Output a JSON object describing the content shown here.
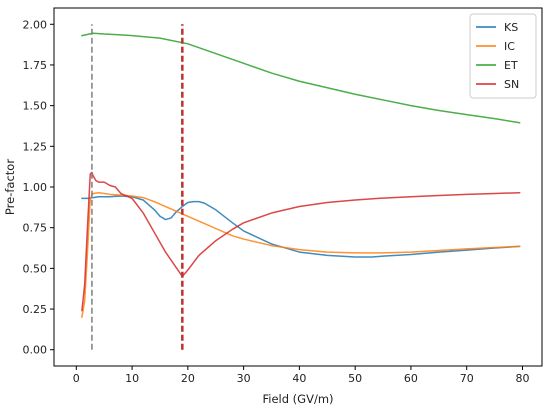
{
  "chart_data": {
    "type": "line",
    "xlabel": "Field (GV/m)",
    "ylabel": "Pre-factor",
    "xlim": [
      -4,
      83.5
    ],
    "ylim": [
      -0.1,
      2.1
    ],
    "xticks": [
      0,
      10,
      20,
      30,
      40,
      50,
      60,
      70,
      80
    ],
    "yticks": [
      0.0,
      0.25,
      0.5,
      0.75,
      1.0,
      1.25,
      1.5,
      1.75,
      2.0
    ],
    "ytick_labels": [
      "0.00",
      "0.25",
      "0.50",
      "0.75",
      "1.00",
      "1.25",
      "1.50",
      "1.75",
      "2.00"
    ],
    "grid": false,
    "legend_position": "top-right",
    "series": [
      {
        "name": "KS",
        "color": "#1f77b4",
        "x": [
          1,
          2,
          3,
          4,
          5,
          6,
          8,
          10,
          12,
          14,
          15,
          16,
          17,
          18,
          19,
          20,
          21,
          22,
          23,
          25,
          28,
          30,
          35,
          40,
          45,
          50,
          53,
          55,
          60,
          65,
          70,
          75,
          79.5
        ],
        "y": [
          0.93,
          0.93,
          0.935,
          0.94,
          0.94,
          0.94,
          0.945,
          0.94,
          0.92,
          0.86,
          0.82,
          0.8,
          0.81,
          0.85,
          0.88,
          0.905,
          0.91,
          0.91,
          0.9,
          0.86,
          0.78,
          0.73,
          0.65,
          0.6,
          0.58,
          0.57,
          0.57,
          0.575,
          0.585,
          0.6,
          0.612,
          0.625,
          0.635
        ]
      },
      {
        "name": "IC",
        "color": "#ff7f0e",
        "x": [
          1,
          1.5,
          2,
          2.5,
          3,
          4,
          5,
          6,
          8,
          10,
          12,
          14,
          16,
          18,
          20,
          22,
          25,
          28,
          30,
          35,
          40,
          45,
          50,
          55,
          60,
          65,
          70,
          75,
          79.5
        ],
        "y": [
          0.2,
          0.3,
          0.6,
          0.93,
          0.96,
          0.965,
          0.96,
          0.955,
          0.95,
          0.945,
          0.935,
          0.91,
          0.88,
          0.85,
          0.82,
          0.79,
          0.745,
          0.7,
          0.68,
          0.64,
          0.615,
          0.6,
          0.595,
          0.595,
          0.6,
          0.61,
          0.62,
          0.628,
          0.635
        ]
      },
      {
        "name": "ET",
        "color": "#2ca02c",
        "x": [
          1,
          3,
          5,
          8,
          10,
          15,
          20,
          25,
          30,
          35,
          40,
          45,
          50,
          55,
          60,
          65,
          70,
          75,
          79.5
        ],
        "y": [
          1.93,
          1.945,
          1.94,
          1.935,
          1.93,
          1.915,
          1.88,
          1.82,
          1.76,
          1.7,
          1.65,
          1.61,
          1.57,
          1.535,
          1.5,
          1.47,
          1.445,
          1.42,
          1.395
        ]
      },
      {
        "name": "SN",
        "color": "#d62728",
        "x": [
          1,
          1.5,
          2,
          2.5,
          2.8,
          3,
          3.5,
          4,
          5,
          6,
          7,
          8,
          10,
          12,
          14,
          16,
          18,
          19,
          20,
          22,
          25,
          28,
          30,
          35,
          40,
          45,
          50,
          55,
          60,
          65,
          70,
          75,
          79.5
        ],
        "y": [
          0.24,
          0.4,
          0.75,
          1.08,
          1.09,
          1.07,
          1.04,
          1.03,
          1.03,
          1.01,
          1.0,
          0.96,
          0.93,
          0.84,
          0.72,
          0.6,
          0.5,
          0.45,
          0.49,
          0.58,
          0.67,
          0.74,
          0.78,
          0.84,
          0.88,
          0.905,
          0.92,
          0.932,
          0.94,
          0.948,
          0.955,
          0.96,
          0.965
        ]
      }
    ],
    "vlines": [
      {
        "x": 2.8,
        "ymin": 0.0,
        "ymax": 2.0,
        "color": "#7f7f7f",
        "style": "dashed"
      },
      {
        "x": 18.9,
        "ymin": 0.0,
        "ymax": 2.0,
        "color": "#8c564b",
        "style": "dashed"
      },
      {
        "x": 19.1,
        "ymin": 0.0,
        "ymax": 2.0,
        "color": "#d62728",
        "style": "dashed"
      }
    ]
  }
}
